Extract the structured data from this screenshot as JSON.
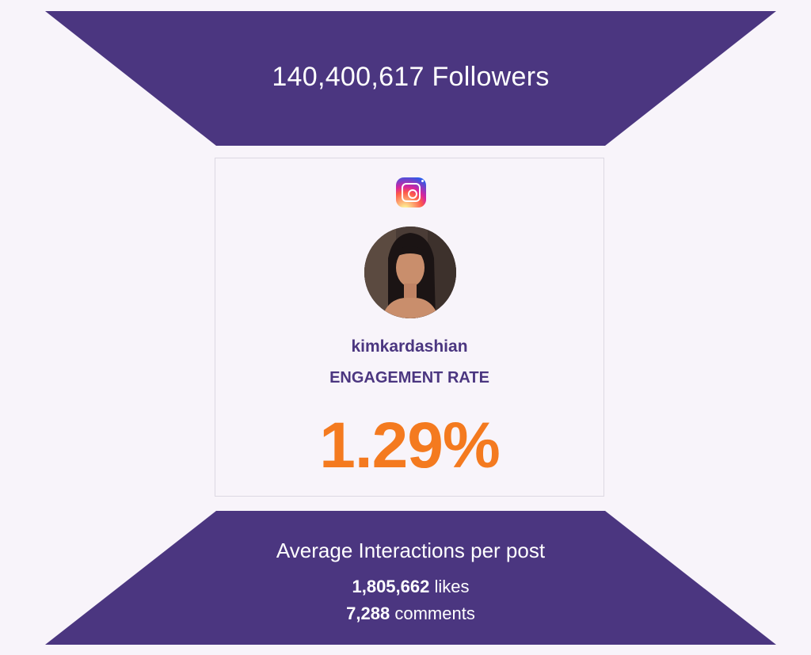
{
  "header": {
    "followers_text": "140,400,617 Followers"
  },
  "profile": {
    "platform_icon": "instagram-icon",
    "username": "kimkardashian",
    "engagement_label": "ENGAGEMENT RATE",
    "engagement_rate": "1.29%"
  },
  "footer": {
    "title": "Average Interactions per post",
    "likes_value": "1,805,662",
    "likes_label": "likes",
    "comments_value": "7,288",
    "comments_label": "comments"
  },
  "colors": {
    "banner": "#4b3680",
    "accent": "#f47a1f",
    "background": "#f8f4fa"
  }
}
